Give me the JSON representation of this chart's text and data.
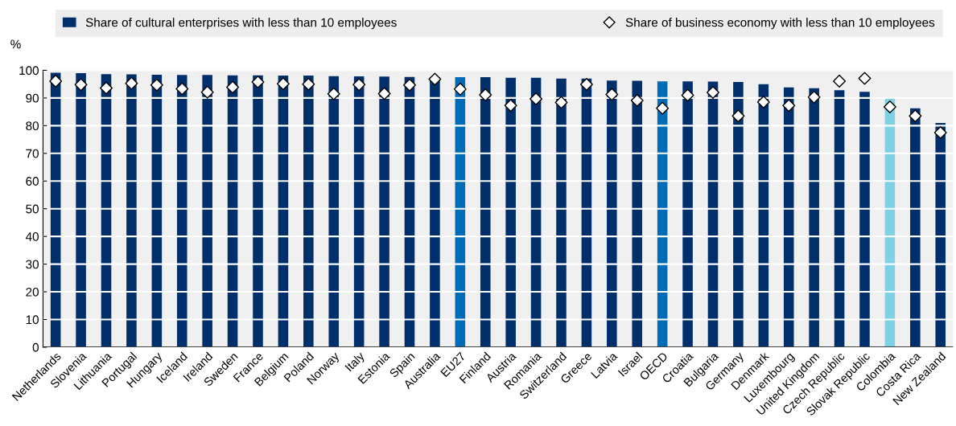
{
  "chart_data": {
    "type": "bar",
    "ylabel": "%",
    "categories": [
      "Netherlands",
      "Slovenia",
      "Lithuania",
      "Portugal",
      "Hungary",
      "Iceland",
      "Ireland",
      "Sweden",
      "France",
      "Belgium",
      "Poland",
      "Norway",
      "Italy",
      "Estonia",
      "Spain",
      "Australia",
      "EU27",
      "Finland",
      "Austria",
      "Romania",
      "Switzerland",
      "Greece",
      "Latvia",
      "Israel",
      "OECD",
      "Croatia",
      "Bulgaria",
      "Germany",
      "Denmark",
      "Luxembourg",
      "United Kingdom",
      "Czech Republic",
      "Slovak Republic",
      "Colombia",
      "Costa Rica",
      "New Zealand"
    ],
    "series": [
      {
        "name": "Share of cultural enterprises with less than 10 employees",
        "color": "#002f6c",
        "colors": [
          "#002f6c",
          "#002f6c",
          "#002f6c",
          "#002f6c",
          "#002f6c",
          "#002f6c",
          "#002f6c",
          "#002f6c",
          "#002f6c",
          "#002f6c",
          "#002f6c",
          "#002f6c",
          "#002f6c",
          "#002f6c",
          "#002f6c",
          "#002f6c",
          "#006bb6",
          "#002f6c",
          "#002f6c",
          "#002f6c",
          "#002f6c",
          "#002f6c",
          "#002f6c",
          "#002f6c",
          "#006bb6",
          "#002f6c",
          "#002f6c",
          "#002f6c",
          "#002f6c",
          "#002f6c",
          "#002f6c",
          "#002f6c",
          "#002f6c",
          "#7fd1e3",
          "#002f6c",
          "#002f6c"
        ],
        "values": [
          99.1,
          99,
          98.6,
          98.5,
          98.4,
          98.3,
          98.3,
          98.2,
          98.2,
          98.1,
          98.1,
          97.9,
          97.8,
          97.7,
          97.6,
          97.5,
          97.5,
          97.5,
          97.3,
          97.3,
          97,
          97,
          96.3,
          96.2,
          96,
          96,
          95.9,
          95.8,
          95,
          93.8,
          93.5,
          92.8,
          92.2,
          90,
          86.3,
          81
        ]
      },
      {
        "name": "Share of business economy with less than 10 employees",
        "type": "scatter",
        "color": "#ffffff",
        "marker": "diamond",
        "values": [
          96.1,
          94.8,
          93.6,
          95.3,
          94.7,
          93.3,
          92.1,
          93.9,
          95.8,
          95.1,
          95.0,
          91.5,
          94.8,
          91.6,
          94.7,
          96.8,
          93.2,
          91.1,
          87.3,
          89.7,
          88.4,
          94.9,
          91.3,
          89.1,
          86.3,
          91,
          92,
          83.5,
          88.5,
          87.3,
          90.3,
          96.1,
          97.1,
          86.8,
          83.5,
          77.5
        ]
      }
    ],
    "ylim": [
      0,
      100
    ],
    "yticks": [
      0,
      10,
      20,
      30,
      40,
      50,
      60,
      70,
      80,
      90,
      100
    ],
    "grid": "y",
    "legend": "top"
  }
}
